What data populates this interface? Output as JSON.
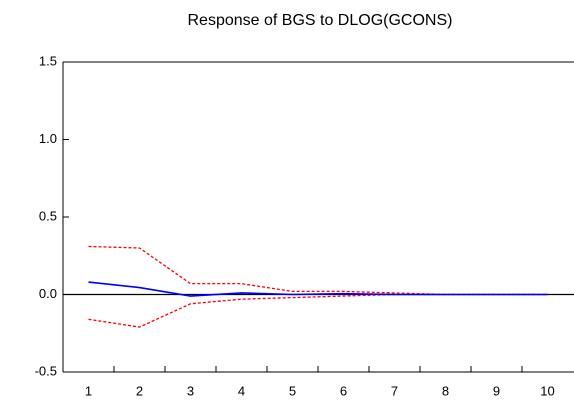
{
  "chart_data": {
    "type": "line",
    "title": "Response of BGS to DLOG(GCONS)",
    "categories": [
      "1",
      "2",
      "3",
      "4",
      "5",
      "6",
      "7",
      "8",
      "9",
      "10"
    ],
    "series": [
      {
        "color": "#ff0000",
        "style": "dashed",
        "values": [
          0.31,
          0.3,
          0.07,
          0.07,
          0.02,
          0.02,
          0.01,
          0,
          0,
          0
        ]
      },
      {
        "color": "#ff0000",
        "style": "dashed",
        "values": [
          -0.16,
          -0.21,
          -0.06,
          -0.03,
          -0.02,
          -0.01,
          0,
          0,
          0,
          0
        ]
      },
      {
        "color": "#0000ff",
        "style": "solid",
        "values": [
          0.08,
          0.045,
          -0.01,
          0.01,
          0,
          0.005,
          0,
          0,
          0,
          0
        ]
      }
    ],
    "ylim": [
      -0.5,
      1.5
    ],
    "yticks": [
      {
        "value": -0.5,
        "label": "-0.5"
      },
      {
        "value": 0,
        "label": "0.0"
      },
      {
        "value": 0.5,
        "label": "0.5"
      },
      {
        "value": 1,
        "label": "1.0"
      },
      {
        "value": 1.5,
        "label": "1.5"
      }
    ]
  }
}
